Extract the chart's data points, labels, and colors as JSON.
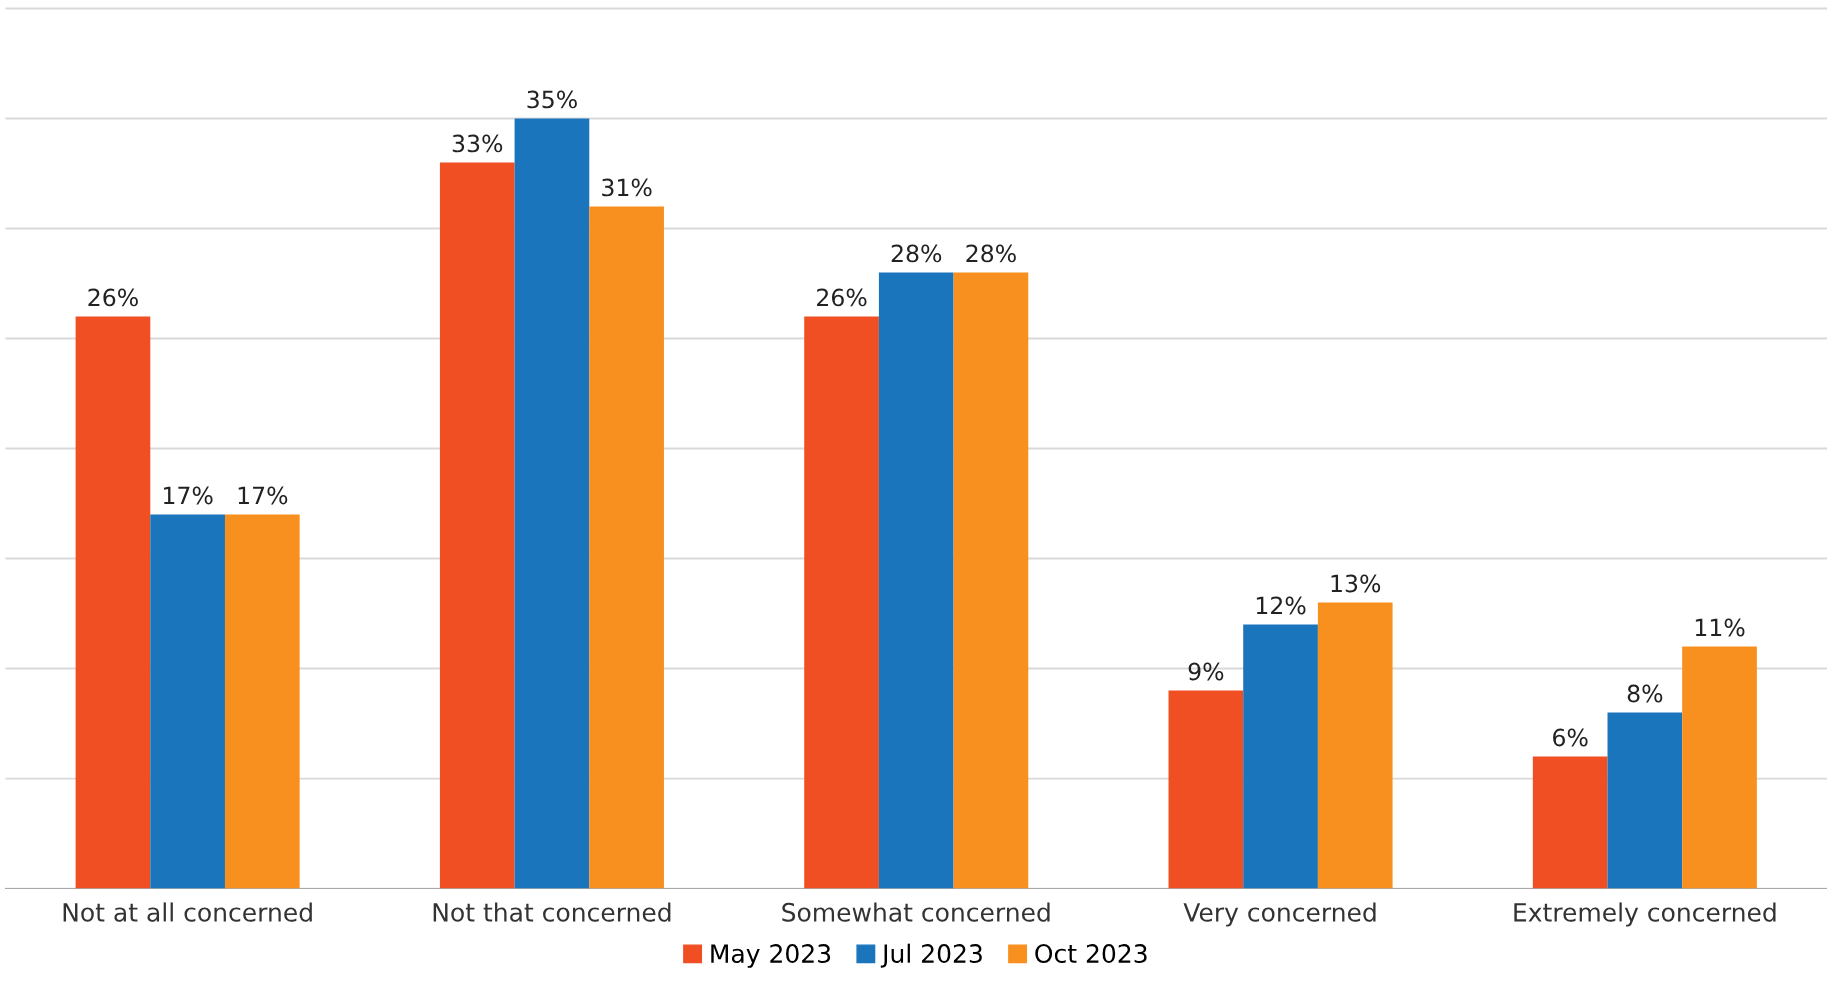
{
  "chart_data": {
    "type": "bar",
    "categories": [
      "Not at all concerned",
      "Not that concerned",
      "Somewhat concerned",
      "Very concerned",
      "Extremely concerned"
    ],
    "series": [
      {
        "name": "May 2023",
        "color": "#f04e23",
        "values": [
          26,
          33,
          26,
          9,
          6
        ],
        "value_labels": [
          "26%",
          "33%",
          "26%",
          "9%",
          "6%"
        ]
      },
      {
        "name": "Jul 2023",
        "color": "#1b75bc",
        "values": [
          17,
          35,
          28,
          12,
          8
        ],
        "value_labels": [
          "17%",
          "35%",
          "28%",
          "12%",
          "8%"
        ]
      },
      {
        "name": "Oct 2023",
        "color": "#f7901e",
        "values": [
          17,
          31,
          28,
          13,
          11
        ],
        "value_labels": [
          "17%",
          "31%",
          "28%",
          "13%",
          "11%"
        ]
      }
    ],
    "tick_labels": "x",
    "grid": "y",
    "legend": "bottom"
  }
}
